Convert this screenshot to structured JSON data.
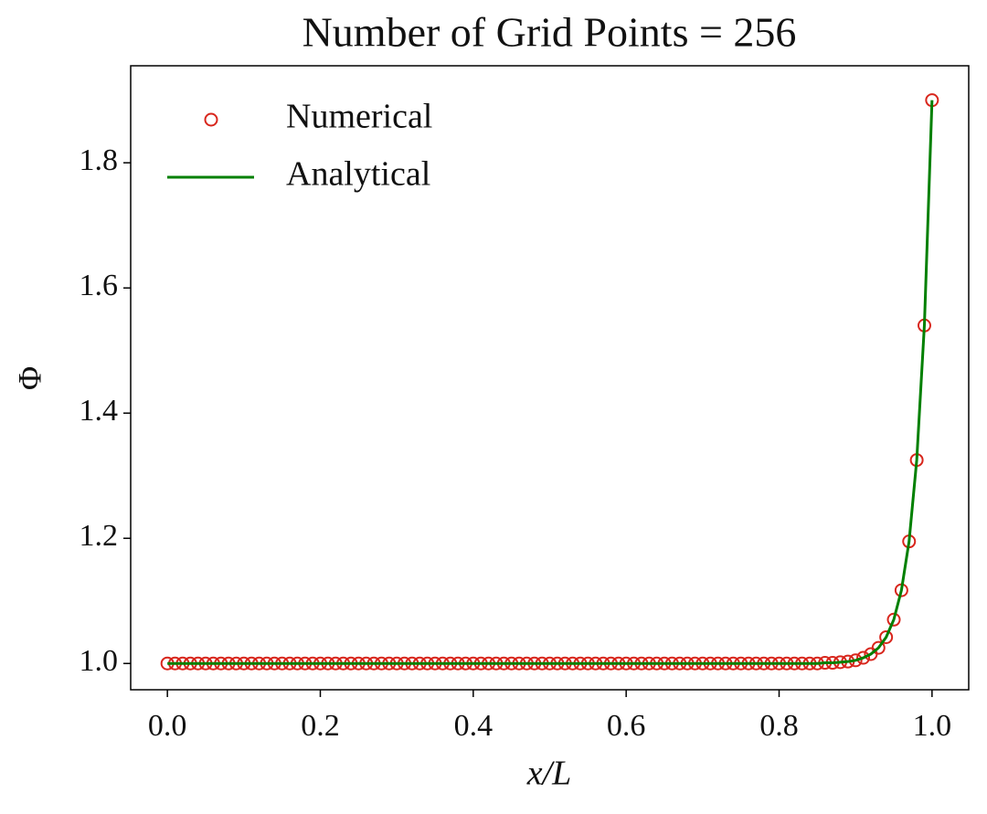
{
  "chart_data": {
    "type": "line",
    "title": "Number of Grid Points = 256",
    "xlabel": "x/L",
    "ylabel": "Φ",
    "x": [
      0,
      0.01,
      0.02,
      0.03,
      0.04,
      0.05,
      0.06,
      0.07,
      0.08,
      0.09,
      0.1,
      0.11,
      0.12,
      0.13,
      0.14,
      0.15,
      0.16,
      0.17,
      0.18,
      0.19,
      0.2,
      0.21,
      0.22,
      0.23,
      0.24,
      0.25,
      0.26,
      0.27,
      0.28,
      0.29,
      0.3,
      0.31,
      0.32,
      0.33,
      0.34,
      0.35,
      0.36,
      0.37,
      0.38,
      0.39,
      0.4,
      0.41,
      0.42,
      0.43,
      0.44,
      0.45,
      0.46,
      0.47,
      0.48,
      0.49,
      0.5,
      0.51,
      0.52,
      0.53,
      0.54,
      0.55,
      0.56,
      0.57,
      0.58,
      0.59,
      0.6,
      0.61,
      0.62,
      0.63,
      0.64,
      0.65,
      0.66,
      0.67,
      0.68,
      0.69,
      0.7,
      0.71,
      0.72,
      0.73,
      0.74,
      0.75,
      0.76,
      0.77,
      0.78,
      0.79,
      0.8,
      0.81,
      0.82,
      0.83,
      0.84,
      0.85,
      0.86,
      0.87,
      0.88,
      0.89,
      0.9,
      0.91,
      0.92,
      0.93,
      0.94,
      0.95,
      0.96,
      0.97,
      0.98,
      0.99,
      1
    ],
    "series": [
      {
        "name": "Numerical",
        "style": "markers",
        "color": "#d8261c",
        "values": [
          1,
          1,
          1,
          1,
          1,
          1,
          1,
          1,
          1,
          1,
          1,
          1,
          1,
          1,
          1,
          1,
          1,
          1,
          1,
          1,
          1,
          1,
          1,
          1,
          1,
          1,
          1,
          1,
          1,
          1,
          1,
          1,
          1,
          1,
          1,
          1,
          1,
          1,
          1,
          1,
          1,
          1,
          1,
          1,
          1,
          1,
          1,
          1,
          1,
          1,
          1,
          1,
          1,
          1,
          1,
          1,
          1,
          1,
          1,
          1,
          1,
          1,
          1,
          1,
          1,
          1,
          1,
          1,
          1,
          1,
          1,
          1,
          1,
          1,
          1,
          1,
          1,
          1,
          1,
          1,
          1,
          1,
          1,
          1,
          1,
          1,
          1.001,
          1.001,
          1.002,
          1.003,
          1.005,
          1.009,
          1.015,
          1.025,
          1.042,
          1.07,
          1.117,
          1.195,
          1.325,
          1.54,
          1.9
        ]
      },
      {
        "name": "Analytical",
        "style": "line",
        "color": "#008000",
        "values": [
          1,
          1,
          1,
          1,
          1,
          1,
          1,
          1,
          1,
          1,
          1,
          1,
          1,
          1,
          1,
          1,
          1,
          1,
          1,
          1,
          1,
          1,
          1,
          1,
          1,
          1,
          1,
          1,
          1,
          1,
          1,
          1,
          1,
          1,
          1,
          1,
          1,
          1,
          1,
          1,
          1,
          1,
          1,
          1,
          1,
          1,
          1,
          1,
          1,
          1,
          1,
          1,
          1,
          1,
          1,
          1,
          1,
          1,
          1,
          1,
          1,
          1,
          1,
          1,
          1,
          1,
          1,
          1,
          1,
          1,
          1,
          1,
          1,
          1,
          1,
          1,
          1,
          1,
          1,
          1,
          1,
          1,
          1,
          1,
          1,
          1,
          1.001,
          1.001,
          1.002,
          1.003,
          1.005,
          1.009,
          1.015,
          1.025,
          1.042,
          1.07,
          1.117,
          1.195,
          1.325,
          1.54,
          1.9
        ]
      }
    ],
    "xlim": [
      -0.048,
      1.048
    ],
    "ylim": [
      0.958,
      1.955
    ],
    "xticks": [
      {
        "value": 0,
        "label": "0.0"
      },
      0.2,
      0.4,
      0.6,
      0.8,
      {
        "value": 1,
        "label": "1.0"
      }
    ],
    "yticks": [
      {
        "value": 1,
        "label": "1.0"
      },
      1.2,
      1.4,
      1.6,
      1.8
    ],
    "legend": "upper left",
    "grid": false
  }
}
